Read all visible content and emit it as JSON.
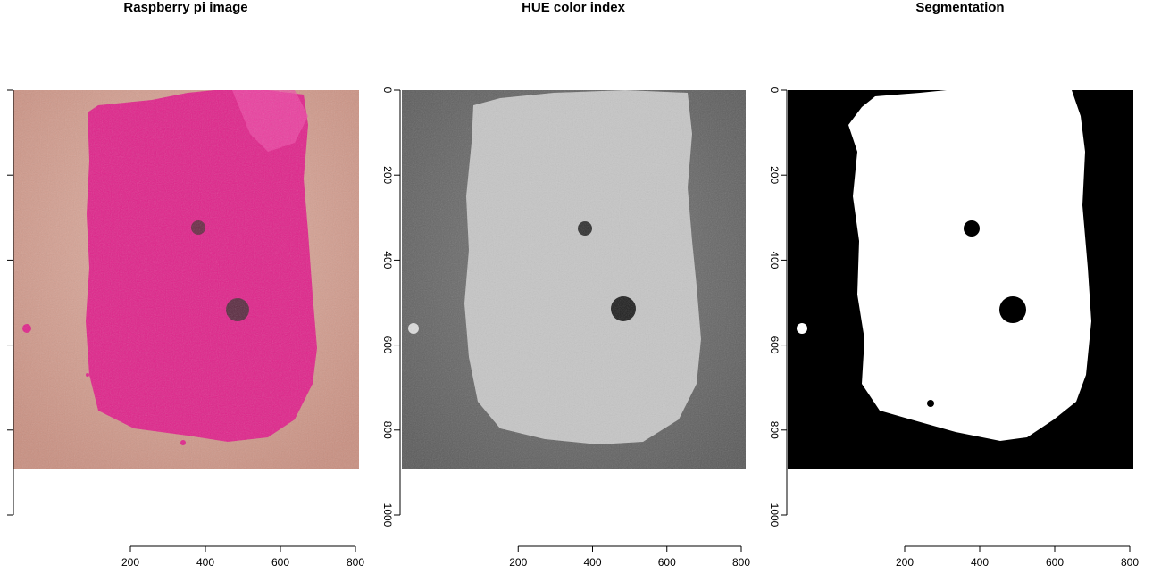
{
  "chart_data": [
    {
      "type": "image",
      "title": "Raspberry pi image",
      "x_ticks": [
        200,
        400,
        600,
        800
      ],
      "y_ticks": [],
      "xlim": [
        0,
        800
      ],
      "ylim": [
        1000,
        0
      ],
      "image_extent": {
        "x": [
          0,
          800
        ],
        "y": [
          0,
          890
        ]
      }
    },
    {
      "type": "image",
      "title": "HUE color index",
      "x_ticks": [
        200,
        400,
        600,
        800
      ],
      "y_ticks": [
        0,
        200,
        400,
        600,
        800,
        1000
      ],
      "xlim": [
        0,
        800
      ],
      "ylim": [
        1000,
        0
      ],
      "image_extent": {
        "x": [
          0,
          800
        ],
        "y": [
          0,
          890
        ]
      }
    },
    {
      "type": "image",
      "title": "Segmentation",
      "x_ticks": [
        200,
        400,
        600,
        800
      ],
      "y_ticks": [
        0,
        200,
        400,
        600,
        800,
        1000
      ],
      "xlim": [
        0,
        800
      ],
      "ylim": [
        1000,
        0
      ],
      "image_extent": {
        "x": [
          0,
          800
        ],
        "y": [
          0,
          890
        ]
      }
    }
  ],
  "colors": {
    "skin": "#d9a394",
    "magenta": "#e0228a",
    "hue_dark": "#6e6e6e",
    "hue_light": "#c8c8c8",
    "seg_bg": "#000000",
    "seg_fg": "#ffffff"
  }
}
